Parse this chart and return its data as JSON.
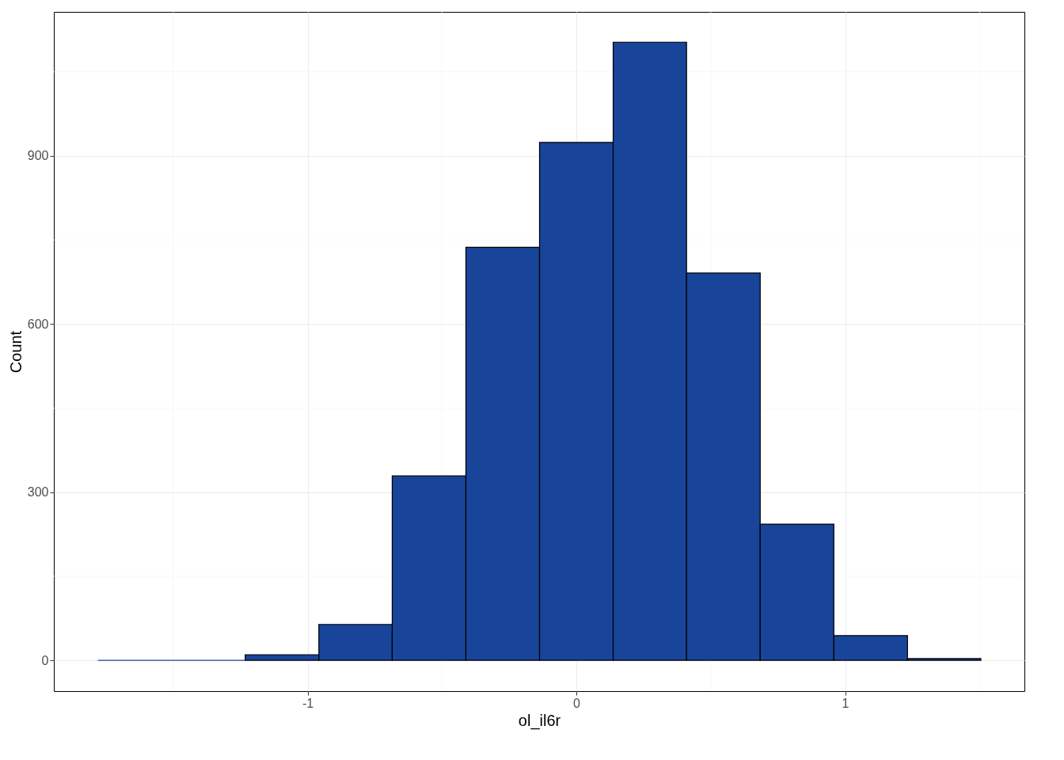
{
  "chart_data": {
    "type": "histogram",
    "xlabel": "ol_il6r",
    "ylabel": "Count",
    "bins": [
      -1.78,
      -1.506,
      -1.232,
      -0.958,
      -0.685,
      -0.411,
      -0.137,
      0.137,
      0.41,
      0.684,
      0.958,
      1.232,
      1.505
    ],
    "values": [
      0,
      0,
      10,
      64,
      329,
      737,
      924,
      1103,
      691,
      243,
      44,
      3
    ],
    "color": "#18449a",
    "xlim": [
      -1.944,
      1.667
    ],
    "ylim": [
      -55,
      1157
    ],
    "xticks": [
      -1,
      0,
      1
    ],
    "yticks": [
      0,
      300,
      600,
      900
    ],
    "grid": true
  }
}
